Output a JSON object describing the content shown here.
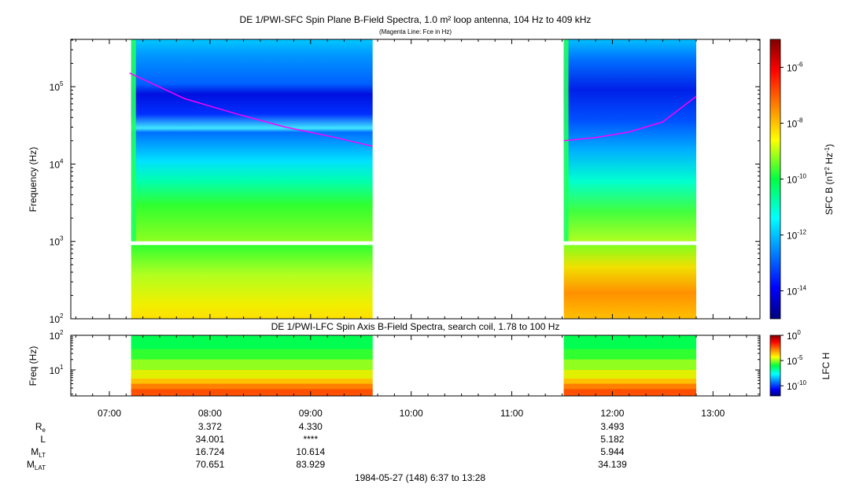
{
  "chart_data": [
    {
      "type": "heatmap",
      "title": "DE 1/PWI-SFC  Spin Plane B-Field Spectra, 1.0 m² loop antenna, 104 Hz to 409 kHz",
      "subtitle": "(Magenta Line: Fce in Hz)",
      "ylabel": "Frequency (Hz)",
      "yscale": "log",
      "ylim": [
        100,
        409000
      ],
      "y_ticks": [
        {
          "value": 100,
          "label": "10",
          "exp": "2"
        },
        {
          "value": 1000,
          "label": "10",
          "exp": "3"
        },
        {
          "value": 10000,
          "label": "10",
          "exp": "4"
        },
        {
          "value": 100000,
          "label": "10",
          "exp": "5"
        }
      ],
      "colorbar": {
        "label_main": "SFC B (nT",
        "label_sup1": "2",
        "label_mid": " Hz",
        "label_sup2": "-1",
        "label_end": ")",
        "scale": "log",
        "range": [
          "1e-15",
          "1e-5"
        ],
        "ticks": [
          {
            "value": "1e-6",
            "label": "10",
            "exp": "-6"
          },
          {
            "value": "1e-8",
            "label": "10",
            "exp": "-8"
          },
          {
            "value": "1e-10",
            "label": "10",
            "exp": "-10"
          },
          {
            "value": "1e-12",
            "label": "10",
            "exp": "-12"
          },
          {
            "value": "1e-14",
            "label": "10",
            "exp": "-14"
          }
        ]
      },
      "data_intervals": [
        [
          "07:13",
          "09:37"
        ],
        [
          "11:31",
          "12:50"
        ]
      ],
      "fce_line": [
        {
          "t": "07:12",
          "f": 150000
        },
        {
          "t": "07:45",
          "f": 70000
        },
        {
          "t": "08:15",
          "f": 45000
        },
        {
          "t": "08:45",
          "f": 30000
        },
        {
          "t": "09:15",
          "f": 22000
        },
        {
          "t": "09:37",
          "f": 17000
        },
        {
          "t": "11:31",
          "f": 20000
        },
        {
          "t": "11:50",
          "f": 22000
        },
        {
          "t": "12:10",
          "f": 26000
        },
        {
          "t": "12:30",
          "f": 35000
        },
        {
          "t": "12:50",
          "f": 75000
        }
      ]
    },
    {
      "type": "heatmap",
      "title": "DE 1/PWI-LFC  Spin Axis B-Field Spectra, search coil, 1.78 to 100 Hz",
      "ylabel": "Freq (Hz)",
      "yscale": "log",
      "ylim": [
        1.78,
        100
      ],
      "y_ticks": [
        {
          "value": 10,
          "label": "10",
          "exp": "1"
        },
        {
          "value": 100,
          "label": "10",
          "exp": "2"
        }
      ],
      "colorbar": {
        "label": "LFC H",
        "scale": "log",
        "range": [
          "1e-12",
          "1"
        ],
        "ticks": [
          {
            "value": "1",
            "label": "10",
            "exp": "0"
          },
          {
            "value": "1e-5",
            "label": "10",
            "exp": "-5"
          },
          {
            "value": "1e-10",
            "label": "10",
            "exp": "-10"
          }
        ]
      },
      "data_intervals": [
        [
          "07:13",
          "09:37"
        ],
        [
          "11:31",
          "12:50"
        ]
      ]
    }
  ],
  "time_axis": {
    "range": [
      "06:37",
      "13:28"
    ],
    "ticks": [
      "07:00",
      "08:00",
      "09:00",
      "10:00",
      "11:00",
      "12:00",
      "13:00"
    ]
  },
  "ephemeris": {
    "rows": [
      {
        "label": "R",
        "sub": "e",
        "values": {
          "08:00": "3.372",
          "09:00": "4.330",
          "12:00": "3.493"
        }
      },
      {
        "label": "L",
        "sub": "",
        "values": {
          "08:00": "34.001",
          "09:00": "****",
          "12:00": "5.182"
        }
      },
      {
        "label": "M",
        "sub": "LT",
        "values": {
          "08:00": "16.724",
          "09:00": "10.614",
          "12:00": "5.944"
        }
      },
      {
        "label": "M",
        "sub": "LAT",
        "values": {
          "08:00": "70.651",
          "09:00": "83.929",
          "12:00": "34.139"
        }
      }
    ]
  },
  "footer": "1984-05-27 (148) 6:37 to 13:28",
  "colors": {
    "fce_line": "#ff00ff",
    "background_band": "#0000ff"
  }
}
